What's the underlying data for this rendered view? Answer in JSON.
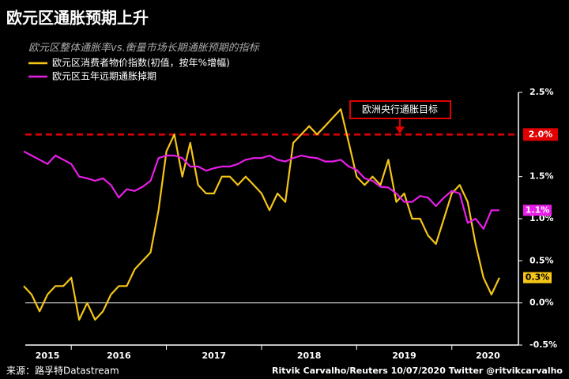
{
  "chart_data": {
    "type": "line",
    "title": "欧元区通胀预期上升",
    "subtitle": "欧元区整体通胀率vs.衡量市场长期通胀预期的指标",
    "source": "来源：路孚特Datastream",
    "credit": "Ritvik Carvalho/Reuters 10/07/2020 Twitter @ritvikcarvalho",
    "x": [
      2015.5,
      2015.583,
      2015.667,
      2015.75,
      2015.833,
      2015.917,
      2016,
      2016.083,
      2016.167,
      2016.25,
      2016.333,
      2016.417,
      2016.5,
      2016.583,
      2016.667,
      2016.75,
      2016.833,
      2016.917,
      2017,
      2017.083,
      2017.167,
      2017.25,
      2017.333,
      2017.417,
      2017.5,
      2017.583,
      2017.667,
      2017.75,
      2017.833,
      2017.917,
      2018,
      2018.083,
      2018.167,
      2018.25,
      2018.333,
      2018.417,
      2018.5,
      2018.583,
      2018.667,
      2018.75,
      2018.833,
      2018.917,
      2019,
      2019.083,
      2019.167,
      2019.25,
      2019.333,
      2019.417,
      2019.5,
      2019.583,
      2019.667,
      2019.75,
      2019.833,
      2019.917,
      2020,
      2020.083,
      2020.167,
      2020.25,
      2020.333,
      2020.417,
      2020.5
    ],
    "series": [
      {
        "name": "欧元区消费者物价指数(初值，按年%增幅)",
        "color": "#f5c518",
        "end_label": "0.3%",
        "values": [
          0.2,
          0.1,
          -0.1,
          0.1,
          0.2,
          0.2,
          0.3,
          -0.2,
          0.0,
          -0.2,
          -0.1,
          0.1,
          0.2,
          0.2,
          0.4,
          0.5,
          0.6,
          1.1,
          1.8,
          2.0,
          1.5,
          1.9,
          1.4,
          1.3,
          1.3,
          1.5,
          1.5,
          1.4,
          1.5,
          1.4,
          1.3,
          1.1,
          1.3,
          1.2,
          1.9,
          2.0,
          2.1,
          2.0,
          2.1,
          2.2,
          2.3,
          1.9,
          1.5,
          1.4,
          1.5,
          1.4,
          1.7,
          1.2,
          1.3,
          1.0,
          1.0,
          0.8,
          0.7,
          1.0,
          1.3,
          1.4,
          1.2,
          0.7,
          0.3,
          0.1,
          0.3
        ]
      },
      {
        "name": "欧元区五年远期通胀掉期",
        "color": "#e81ee8",
        "end_label": "1.1%",
        "values": [
          1.8,
          1.75,
          1.7,
          1.65,
          1.75,
          1.7,
          1.65,
          1.5,
          1.48,
          1.45,
          1.48,
          1.4,
          1.25,
          1.35,
          1.33,
          1.38,
          1.45,
          1.72,
          1.75,
          1.75,
          1.72,
          1.62,
          1.62,
          1.57,
          1.6,
          1.62,
          1.62,
          1.65,
          1.7,
          1.72,
          1.72,
          1.75,
          1.7,
          1.68,
          1.72,
          1.75,
          1.73,
          1.72,
          1.68,
          1.68,
          1.7,
          1.62,
          1.58,
          1.48,
          1.45,
          1.38,
          1.37,
          1.3,
          1.2,
          1.2,
          1.27,
          1.25,
          1.15,
          1.25,
          1.33,
          1.3,
          0.95,
          1.0,
          0.88,
          1.1,
          1.1
        ]
      }
    ],
    "target": {
      "value": 2.0,
      "label": "2.0%",
      "annotation": "欧洲央行通胀目标",
      "color": "#e00000"
    },
    "xlim": [
      2015.5,
      2020.7
    ],
    "year_dividers": [
      2016,
      2017,
      2018,
      2019,
      2020
    ],
    "year_labels": [
      {
        "value": 2015.75,
        "label": "2015"
      },
      {
        "value": 2016.5,
        "label": "2016"
      },
      {
        "value": 2017.5,
        "label": "2017"
      },
      {
        "value": 2018.5,
        "label": "2018"
      },
      {
        "value": 2019.5,
        "label": "2019"
      },
      {
        "value": 2020.38,
        "label": "2020"
      }
    ],
    "ylim": [
      -0.5,
      2.5
    ],
    "yticks": [
      {
        "value": 2.5,
        "label": "2.5%"
      },
      {
        "value": 1.5,
        "label": "1.5%"
      },
      {
        "value": 1.0,
        "label": "1.0%"
      },
      {
        "value": 0.5,
        "label": "0.5%"
      },
      {
        "value": 0,
        "label": "0.0%"
      },
      {
        "value": -0.5,
        "label": "-0.5%"
      }
    ]
  }
}
